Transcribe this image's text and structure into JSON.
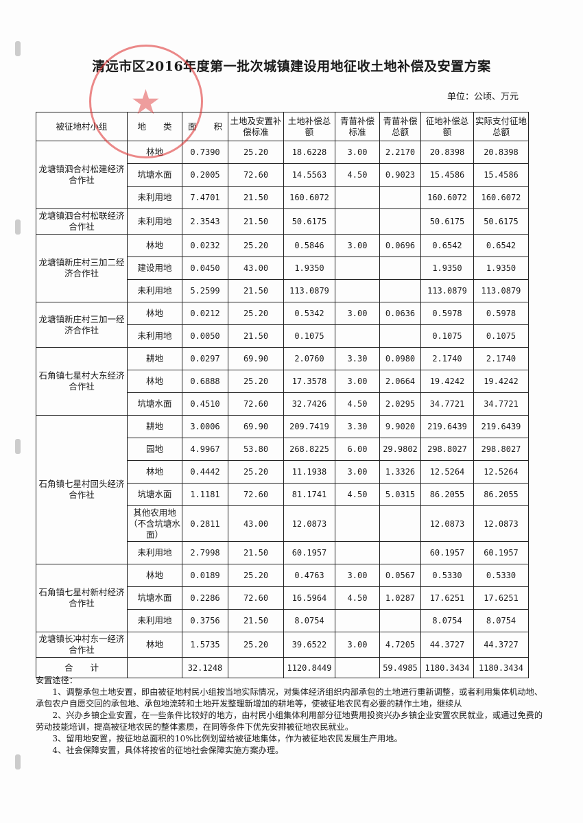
{
  "title": "清远市区2016年度第一批次城镇建设用地征收土地补偿及安置方案",
  "unit": "单位：公顷、万元",
  "headers": [
    "被征地村小组",
    "地　　类",
    "面　　积",
    "土地及安置补偿标准",
    "土地补偿总额",
    "青苗补偿标准",
    "青苗补偿总额",
    "征地补偿总额",
    "实际支付征地总额"
  ],
  "groups": [
    {
      "name": "龙塘镇泗合村松建经济合作社",
      "rows": [
        [
          "林地",
          "0.7390",
          "25.20",
          "18.6228",
          "3.00",
          "2.2170",
          "20.8398",
          "20.8398"
        ],
        [
          "坑塘水面",
          "0.2005",
          "72.60",
          "14.5563",
          "4.50",
          "0.9023",
          "15.4586",
          "15.4586"
        ],
        [
          "未利用地",
          "7.4701",
          "21.50",
          "160.6072",
          "",
          "",
          "160.6072",
          "160.6072"
        ]
      ]
    },
    {
      "name": "龙塘镇泗合村松联经济合作社",
      "rows": [
        [
          "未利用地",
          "2.3543",
          "21.50",
          "50.6175",
          "",
          "",
          "50.6175",
          "50.6175"
        ]
      ]
    },
    {
      "name": "龙塘镇新庄村三加二经济合作社",
      "rows": [
        [
          "林地",
          "0.0232",
          "25.20",
          "0.5846",
          "3.00",
          "0.0696",
          "0.6542",
          "0.6542"
        ],
        [
          "建设用地",
          "0.0450",
          "43.00",
          "1.9350",
          "",
          "",
          "1.9350",
          "1.9350"
        ],
        [
          "未利用地",
          "5.2599",
          "21.50",
          "113.0879",
          "",
          "",
          "113.0879",
          "113.0879"
        ]
      ]
    },
    {
      "name": "龙塘镇新庄村三加一经济合作社",
      "rows": [
        [
          "林地",
          "0.0212",
          "25.20",
          "0.5342",
          "3.00",
          "0.0636",
          "0.5978",
          "0.5978"
        ],
        [
          "未利用地",
          "0.0050",
          "21.50",
          "0.1075",
          "",
          "",
          "0.1075",
          "0.1075"
        ]
      ]
    },
    {
      "name": "石角镇七星村大东经济合作社",
      "rows": [
        [
          "耕地",
          "0.0297",
          "69.90",
          "2.0760",
          "3.30",
          "0.0980",
          "2.1740",
          "2.1740"
        ],
        [
          "林地",
          "0.6888",
          "25.20",
          "17.3578",
          "3.00",
          "2.0664",
          "19.4242",
          "19.4242"
        ],
        [
          "坑塘水面",
          "0.4510",
          "72.60",
          "32.7426",
          "4.50",
          "2.0295",
          "34.7721",
          "34.7721"
        ]
      ]
    },
    {
      "name": "石角镇七星村回头经济合作社",
      "rows": [
        [
          "耕地",
          "3.0006",
          "69.90",
          "209.7419",
          "3.30",
          "9.9020",
          "219.6439",
          "219.6439"
        ],
        [
          "园地",
          "4.9967",
          "53.80",
          "268.8225",
          "6.00",
          "29.9802",
          "298.8027",
          "298.8027"
        ],
        [
          "林地",
          "0.4442",
          "25.20",
          "11.1938",
          "3.00",
          "1.3326",
          "12.5264",
          "12.5264"
        ],
        [
          "坑塘水面",
          "1.1181",
          "72.60",
          "81.1741",
          "4.50",
          "5.0315",
          "86.2055",
          "86.2055"
        ],
        [
          "其他农用地（不含坑塘水面）",
          "0.2811",
          "43.00",
          "12.0873",
          "",
          "",
          "12.0873",
          "12.0873"
        ],
        [
          "未利用地",
          "2.7998",
          "21.50",
          "60.1957",
          "",
          "",
          "60.1957",
          "60.1957"
        ]
      ]
    },
    {
      "name": "石角镇七星村新村经济合作社",
      "rows": [
        [
          "林地",
          "0.0189",
          "25.20",
          "0.4763",
          "3.00",
          "0.0567",
          "0.5330",
          "0.5330"
        ],
        [
          "坑塘水面",
          "0.2286",
          "72.60",
          "16.5964",
          "4.50",
          "1.0287",
          "17.6251",
          "17.6251"
        ],
        [
          "未利用地",
          "0.3756",
          "21.50",
          "8.0754",
          "",
          "",
          "8.0754",
          "8.0754"
        ]
      ]
    },
    {
      "name": "龙塘镇长冲村东一经济合作社",
      "rows": [
        [
          "林地",
          "1.5735",
          "25.20",
          "39.6522",
          "3.00",
          "4.7205",
          "44.3727",
          "44.3727"
        ]
      ]
    }
  ],
  "total": [
    "合　　计",
    "",
    "32.1248",
    "",
    "1120.8449",
    "",
    "59.4985",
    "1180.3434",
    "1180.3434"
  ],
  "notes": {
    "heading": "安置途径：",
    "items": [
      "1、调整承包土地安置，即由被征地村民小组按当地实际情况，对集体经济组织内部承包的土地进行重新调整，或者利用集体机动地、承包农户自愿交回的承包地、承包地流转和土地开发整理新增加的耕地等，使被征地农民有必要的耕作土地，继续从",
      "2、兴办乡镇企业安置，在一些条件比较好的地方，由村民小组集体利用部分征地费用投资兴办乡镇企业安置农民就业，或通过免费的劳动技能培训，提高被征地农民的整体素质，在同等条件下优先安排被征地农民就业。",
      "3、留用地安置，按征地总面积的10%比例划留给被征地集体，作为被征地农民发展生产用地。",
      "4、社会保障安置，具体将按省的征地社会保障实施方案办理。"
    ]
  },
  "stamp_color": "#dc2828"
}
